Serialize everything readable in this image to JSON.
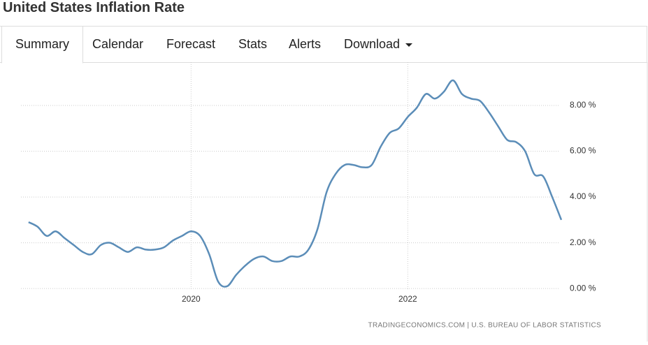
{
  "header": {
    "title": "United States Inflation Rate"
  },
  "tabs": [
    "Summary",
    "Calendar",
    "Forecast",
    "Stats",
    "Alerts",
    "Download"
  ],
  "chart_data": {
    "type": "line",
    "x": [
      2018.5,
      2018.583,
      2018.667,
      2018.75,
      2018.833,
      2018.917,
      2019,
      2019.083,
      2019.167,
      2019.25,
      2019.333,
      2019.417,
      2019.5,
      2019.583,
      2019.667,
      2019.75,
      2019.833,
      2019.917,
      2020,
      2020.083,
      2020.167,
      2020.25,
      2020.333,
      2020.417,
      2020.5,
      2020.583,
      2020.667,
      2020.75,
      2020.833,
      2020.917,
      2021,
      2021.083,
      2021.167,
      2021.25,
      2021.333,
      2021.417,
      2021.5,
      2021.583,
      2021.667,
      2021.75,
      2021.833,
      2021.917,
      2022,
      2022.083,
      2022.167,
      2022.25,
      2022.333,
      2022.417,
      2022.5,
      2022.583,
      2022.667,
      2022.75,
      2022.833,
      2022.917,
      2023,
      2023.083,
      2023.167,
      2023.25,
      2023.333,
      2023.417
    ],
    "series": [
      {
        "color": "#5b8db8",
        "values": [
          2.9,
          2.7,
          2.3,
          2.5,
          2.2,
          1.9,
          1.6,
          1.5,
          1.9,
          2.0,
          1.8,
          1.6,
          1.8,
          1.7,
          1.7,
          1.8,
          2.1,
          2.3,
          2.5,
          2.3,
          1.5,
          0.3,
          0.1,
          0.6,
          1.0,
          1.3,
          1.4,
          1.2,
          1.2,
          1.4,
          1.4,
          1.7,
          2.6,
          4.2,
          5.0,
          5.4,
          5.4,
          5.3,
          5.4,
          6.2,
          6.8,
          7.0,
          7.5,
          7.9,
          8.5,
          8.3,
          8.6,
          9.1,
          8.5,
          8.3,
          8.2,
          7.7,
          7.1,
          6.5,
          6.4,
          6.0,
          5.0,
          4.9,
          4.0,
          3.0
        ]
      }
    ],
    "xlim": [
      2018.43,
      2023.43
    ],
    "xticks": [
      2020,
      2022
    ],
    "ylim": [
      -0.5,
      10
    ],
    "yticks": [
      {
        "value": 0,
        "label": "0.00 %"
      },
      {
        "value": 2,
        "label": "2.00 %"
      },
      {
        "value": 4,
        "label": "4.00 %"
      },
      {
        "value": 6,
        "label": "6.00 %"
      },
      {
        "value": 8,
        "label": "8.00 %"
      }
    ],
    "grid": true,
    "source": "TRADINGECONOMICS.COM | U.S. BUREAU OF LABOR STATISTICS"
  }
}
